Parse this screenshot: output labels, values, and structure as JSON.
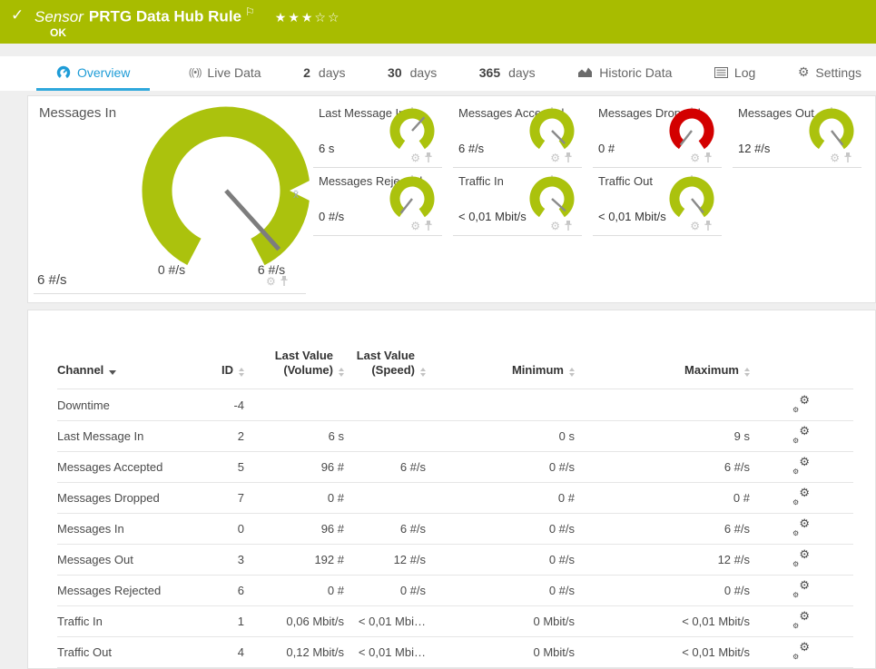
{
  "header": {
    "status_icon": "✓",
    "kind_label": "Sensor",
    "title": "PRTG Data Hub Rule",
    "flag_icon": "⚐",
    "stars": "★★★☆☆",
    "status": "OK"
  },
  "colors": {
    "brand_green": "#a8bc00",
    "gauge_green": "#abc20d",
    "gauge_red": "#d30000",
    "accent_blue": "#1e9cd7"
  },
  "tabs": [
    {
      "name": "overview",
      "icon": "gauge-icon",
      "prefix": "",
      "label": "Overview",
      "active": true
    },
    {
      "name": "live-data",
      "icon": "live-icon",
      "prefix": "",
      "label": "Live Data",
      "active": false
    },
    {
      "name": "2-days",
      "icon": "",
      "prefix": "2",
      "label": "days",
      "active": false
    },
    {
      "name": "30-days",
      "icon": "",
      "prefix": "30",
      "label": "days",
      "active": false
    },
    {
      "name": "365-days",
      "icon": "",
      "prefix": "365",
      "label": "days",
      "active": false
    },
    {
      "name": "historic-data",
      "icon": "chart-icon",
      "prefix": "",
      "label": "Historic Data",
      "active": false
    },
    {
      "name": "log",
      "icon": "log-icon",
      "prefix": "",
      "label": "Log",
      "active": false
    },
    {
      "name": "settings",
      "icon": "gear-icon",
      "prefix": "",
      "label": "Settings",
      "active": false
    }
  ],
  "main_gauge": {
    "title": "Messages In",
    "value": "6 #/s",
    "scale_min": "0 #/s",
    "scale_max": "6 #/s",
    "average_marker": "x̄",
    "color": "#abc20d",
    "needle_deg": 138
  },
  "small_gauges": [
    {
      "name": "Last Message In",
      "value": "6 s",
      "color": "#abc20d",
      "needle_deg": 42
    },
    {
      "name": "Messages Accepted",
      "value": "6 #/s",
      "color": "#abc20d",
      "needle_deg": 135
    },
    {
      "name": "Messages Dropped",
      "value": "0 #",
      "color": "#d30000",
      "needle_deg": 218
    },
    {
      "name": "Messages Out",
      "value": "12 #/s",
      "color": "#abc20d",
      "needle_deg": 142
    },
    {
      "name": "Messages Rejected",
      "value": "0 #/s",
      "color": "#abc20d",
      "needle_deg": 218
    },
    {
      "name": "Traffic In",
      "value": "< 0,01 Mbit/s",
      "color": "#abc20d",
      "needle_deg": 132
    },
    {
      "name": "Traffic Out",
      "value": "< 0,01 Mbit/s",
      "color": "#abc20d",
      "needle_deg": 140
    }
  ],
  "table": {
    "columns": [
      {
        "label": "Channel",
        "label2": "",
        "sort": "desc",
        "align": "left"
      },
      {
        "label": "ID",
        "label2": "",
        "sort": "both",
        "align": "right"
      },
      {
        "label": "Last Value",
        "label2": "(Volume)",
        "sort": "both",
        "align": "right"
      },
      {
        "label": "Last Value",
        "label2": "(Speed)",
        "sort": "both",
        "align": "right"
      },
      {
        "label": "Minimum",
        "label2": "",
        "sort": "both",
        "align": "right"
      },
      {
        "label": "Maximum",
        "label2": "",
        "sort": "both",
        "align": "right"
      },
      {
        "label": "",
        "label2": "",
        "sort": "none",
        "align": "right"
      }
    ],
    "rows": [
      {
        "channel": "Downtime",
        "id": "-4",
        "volume": "",
        "speed": "",
        "min": "",
        "max": ""
      },
      {
        "channel": "Last Message In",
        "id": "2",
        "volume": "6 s",
        "speed": "",
        "min": "0 s",
        "max": "9 s"
      },
      {
        "channel": "Messages Accepted",
        "id": "5",
        "volume": "96 #",
        "speed": "6 #/s",
        "min": "0 #/s",
        "max": "6 #/s"
      },
      {
        "channel": "Messages Dropped",
        "id": "7",
        "volume": "0 #",
        "speed": "",
        "min": "0 #",
        "max": "0 #"
      },
      {
        "channel": "Messages In",
        "id": "0",
        "volume": "96 #",
        "speed": "6 #/s",
        "min": "0 #/s",
        "max": "6 #/s"
      },
      {
        "channel": "Messages Out",
        "id": "3",
        "volume": "192 #",
        "speed": "12 #/s",
        "min": "0 #/s",
        "max": "12 #/s"
      },
      {
        "channel": "Messages Rejected",
        "id": "6",
        "volume": "0 #",
        "speed": "0 #/s",
        "min": "0 #/s",
        "max": "0 #/s"
      },
      {
        "channel": "Traffic In",
        "id": "1",
        "volume": "0,06 Mbit/s",
        "speed": "< 0,01 Mbi…",
        "min": "0 Mbit/s",
        "max": "< 0,01 Mbit/s"
      },
      {
        "channel": "Traffic Out",
        "id": "4",
        "volume": "0,12 Mbit/s",
        "speed": "< 0,01 Mbi…",
        "min": "0 Mbit/s",
        "max": "< 0,01 Mbit/s"
      }
    ]
  }
}
